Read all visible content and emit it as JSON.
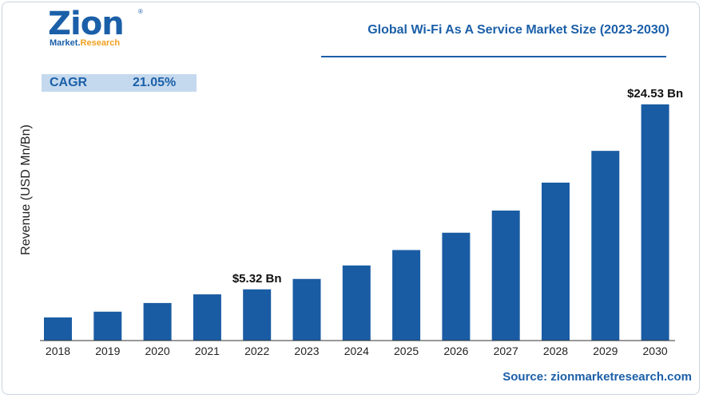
{
  "logo": {
    "main": "Zion",
    "reg": "®",
    "sub_1": "Market.",
    "sub_2": "Research"
  },
  "header": {
    "title": "Global Wi-Fi As A Service Market Size (2023-2030)"
  },
  "cagr": {
    "label": "CAGR",
    "value": "21.05%"
  },
  "source": "Source: zionmarketresearch.com",
  "colors": {
    "bar": "#1a5ca3",
    "accent": "#1b5fa8",
    "cagr_bg": "#c5d9ee"
  },
  "chart_data": {
    "type": "bar",
    "categories": [
      "2018",
      "2019",
      "2020",
      "2021",
      "2022",
      "2023",
      "2024",
      "2025",
      "2026",
      "2027",
      "2028",
      "2029",
      "2030"
    ],
    "values": [
      2.4,
      3.0,
      3.9,
      4.8,
      5.32,
      6.4,
      7.8,
      9.4,
      11.2,
      13.5,
      16.4,
      19.7,
      24.53
    ],
    "ylabel": "Revenue (USD Mn/Bn)",
    "ylim": [
      0,
      27
    ],
    "annotations": [
      {
        "category": "2022",
        "text": "$5.32 Bn"
      },
      {
        "category": "2030",
        "text": "$24.53 Bn"
      }
    ],
    "grid": false,
    "legend": "none"
  }
}
